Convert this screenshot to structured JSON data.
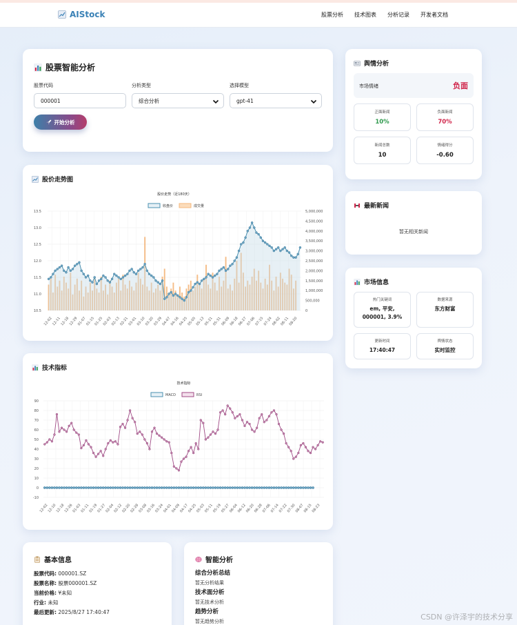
{
  "nav": {
    "brand": "AIStock",
    "links": [
      "股票分析",
      "技术图表",
      "分析记录",
      "开发者文档"
    ]
  },
  "analysis_form": {
    "title": "股票智能分析",
    "code_label": "股票代码",
    "code_value": "000001",
    "type_label": "分析类型",
    "type_value": "综合分析",
    "model_label": "选择模型",
    "model_value": "gpt-41",
    "start_button": "开始分析"
  },
  "sentiment": {
    "title": "舆情分析",
    "market_label": "市场情绪",
    "market_value": "负面",
    "positive_label": "正面新闻",
    "positive_value": "10%",
    "negative_label": "负面新闻",
    "negative_value": "70%",
    "total_label": "新闻总数",
    "total_value": "10",
    "score_label": "情绪得分",
    "score_value": "-0.60",
    "colors": {
      "positive": "#2f9a4d",
      "negative": "#d0254a"
    }
  },
  "news": {
    "title": "最新新闻",
    "empty_text": "暂无相关新闻"
  },
  "market_info": {
    "title": "市场信息",
    "hot_label": "热门关键词",
    "hot_value": "em, 平安, 000001, 3.9%",
    "source_label": "数据来源",
    "source_value": "东方财富",
    "update_label": "更新时间",
    "update_value": "17:40:47",
    "status_label": "舆情状态",
    "status_value": "实时监控"
  },
  "price_card": {
    "title": "股价走势图"
  },
  "tech_card": {
    "title": "技术指标"
  },
  "basic_info": {
    "title": "基本信息",
    "code_k": "股票代码:",
    "code_v": "000001.SZ",
    "name_k": "股票名称:",
    "name_v": "股票000001.SZ",
    "price_k": "当前价格:",
    "price_v": "¥未知",
    "industry_k": "行业:",
    "industry_v": "未知",
    "updated_k": "最后更新:",
    "updated_v": "2025/8/27 17:40:47"
  },
  "smart_analysis": {
    "title": "智能分析",
    "summary_h": "综合分析总结",
    "summary_t": "暂无分析结果",
    "tech_h": "技术面分析",
    "tech_t": "暂无技术分析",
    "trend_h": "趋势分析",
    "trend_t": "暂无趋势分析"
  },
  "watermark": "CSDN @许泽宇的技术分享",
  "chart_data": [
    {
      "type": "line+bar",
      "title": "股价走势（近180天）",
      "series": [
        {
          "name": "收盘价",
          "axis": "left",
          "color": "#4a90b0",
          "values": [
            11.45,
            11.5,
            11.6,
            11.7,
            11.75,
            11.8,
            11.85,
            11.7,
            11.65,
            11.8,
            11.7,
            11.75,
            11.85,
            11.9,
            11.95,
            11.7,
            11.6,
            11.5,
            11.55,
            11.4,
            11.35,
            11.5,
            11.3,
            11.4,
            11.45,
            11.55,
            11.5,
            11.4,
            11.35,
            11.45,
            11.6,
            11.55,
            11.5,
            11.45,
            11.5,
            11.55,
            11.6,
            11.7,
            11.75,
            11.65,
            11.6,
            11.7,
            11.75,
            11.8,
            11.9,
            11.7,
            11.6,
            11.55,
            11.5,
            11.4,
            11.35,
            11.3,
            11.4,
            10.85,
            10.9,
            11.0,
            11.05,
            10.95,
            11.0,
            10.95,
            10.9,
            10.85,
            10.8,
            10.9,
            11.05,
            11.1,
            11.2,
            11.3,
            11.35,
            11.3,
            11.4,
            11.45,
            11.5,
            11.6,
            11.55,
            11.5,
            11.55,
            11.6,
            11.7,
            11.75,
            11.8,
            11.7,
            11.75,
            11.85,
            11.9,
            12.0,
            12.1,
            12.3,
            12.5,
            12.55,
            12.7,
            12.9,
            13.0,
            13.15,
            13.0,
            12.85,
            12.8,
            12.7,
            12.6,
            12.55,
            12.5,
            12.45,
            12.4,
            12.3,
            12.35,
            12.4,
            12.3,
            12.35,
            12.4,
            12.3,
            12.25,
            12.15,
            12.1,
            12.1,
            12.2,
            12.4
          ]
        },
        {
          "name": "成交量",
          "axis": "right",
          "color": "#f4b97d",
          "values": [
            1300000,
            1600000,
            900000,
            1800000,
            1200000,
            1500000,
            1000000,
            1700000,
            1400000,
            1100000,
            1900000,
            800000,
            1300000,
            1600000,
            1000000,
            1500000,
            700000,
            1200000,
            900000,
            1400000,
            1000000,
            1600000,
            1100000,
            900000,
            1700000,
            1000000,
            1300000,
            800000,
            1500000,
            1200000,
            900000,
            1400000,
            1600000,
            1000000,
            1800000,
            1300000,
            1100000,
            1500000,
            1200000,
            1000000,
            1400000,
            1900000,
            1600000,
            1300000,
            3700000,
            1200000,
            1000000,
            1400000,
            900000,
            1100000,
            1300000,
            1000000,
            1700000,
            2100000,
            1200000,
            900000,
            1100000,
            1400000,
            1000000,
            800000,
            1200000,
            900000,
            700000,
            1100000,
            1300000,
            1500000,
            1000000,
            1200000,
            1800000,
            1400000,
            1100000,
            1600000,
            2300000,
            1300000,
            1100000,
            1900000,
            1400000,
            1000000,
            1700000,
            1200000,
            1500000,
            2700000,
            1100000,
            1300000,
            1000000,
            1600000,
            2500000,
            1400000,
            2900000,
            1900000,
            1200000,
            1500000,
            1300000,
            1700000,
            2100000,
            1500000,
            2000000,
            1400000,
            1100000,
            1600000,
            1300000,
            2300000,
            1500000,
            1000000,
            1700000,
            1200000,
            1900000,
            1600000,
            1400000,
            1300000,
            2100000,
            1800000,
            1100000,
            1500000
          ]
        }
      ],
      "x_ticks": [
        "12-02",
        "12-11",
        "12-18",
        "12-29",
        "01-07",
        "01-15",
        "01-25",
        "02-03",
        "02-13",
        "02-21",
        "03-01",
        "03-10",
        "03-20",
        "03-29",
        "04-07",
        "04-16",
        "04-25",
        "05-05",
        "05-13",
        "05-21",
        "05-31",
        "06-09",
        "06-18",
        "06-27",
        "07-06",
        "07-15",
        "07-24",
        "08-02",
        "08-11",
        "08-20"
      ],
      "y_left": {
        "min": 10.5,
        "max": 13.5,
        "ticks": [
          "10.5",
          "11.0",
          "11.5",
          "12.0",
          "12.5",
          "13.0",
          "13.5"
        ]
      },
      "y_right": {
        "min": 0,
        "max": 5000000,
        "ticks": [
          "0",
          "500,000",
          "1,000,000",
          "1,500,000",
          "2,000,000",
          "2,500,000",
          "3,000,000",
          "3,500,000",
          "4,000,000",
          "4,500,000",
          "5,000,000"
        ]
      },
      "grid": true,
      "legend": "top-center"
    },
    {
      "type": "line",
      "title": "技术指标",
      "series": [
        {
          "name": "MACD",
          "color": "#4a90b0",
          "values": [
            0,
            0,
            0,
            0,
            0,
            0,
            0,
            0,
            0,
            0,
            0,
            0,
            0,
            0,
            0,
            0,
            0,
            0,
            0,
            0,
            0,
            0,
            0,
            0,
            0,
            0,
            0,
            0,
            0,
            0,
            0,
            0,
            0,
            0,
            0,
            0,
            0,
            0,
            0,
            0,
            0,
            0,
            0,
            0,
            0,
            0,
            0,
            0,
            0,
            0,
            0,
            0,
            0,
            0,
            0,
            0,
            0,
            0,
            0,
            0,
            0,
            0,
            0,
            0,
            0,
            0,
            0,
            0,
            0,
            0,
            0,
            0,
            0,
            0,
            0,
            0,
            0,
            0,
            0,
            0,
            0,
            0,
            0,
            0,
            0,
            0,
            0,
            0,
            0,
            0,
            0,
            0,
            0,
            0,
            0,
            0,
            0,
            0,
            0,
            0,
            0,
            0,
            0,
            0,
            0,
            0,
            0,
            0,
            0,
            0,
            0
          ]
        },
        {
          "name": "RSI",
          "color": "#a04a85",
          "values": [
            45,
            47,
            50,
            48,
            55,
            76,
            58,
            62,
            60,
            58,
            64,
            67,
            60,
            57,
            55,
            41,
            44,
            49,
            45,
            42,
            36,
            32,
            35,
            38,
            33,
            40,
            46,
            49,
            47,
            48,
            45,
            63,
            66,
            62,
            70,
            80,
            72,
            68,
            56,
            58,
            55,
            50,
            46,
            40,
            58,
            62,
            56,
            54,
            52,
            50,
            48,
            47,
            36,
            22,
            20,
            18,
            27,
            30,
            32,
            38,
            42,
            36,
            46,
            40,
            70,
            67,
            50,
            52,
            55,
            58,
            56,
            60,
            78,
            80,
            76,
            85,
            82,
            78,
            72,
            74,
            76,
            70,
            64,
            68,
            66,
            60,
            58,
            62,
            72,
            76,
            68,
            70,
            74,
            78,
            80,
            76,
            66,
            60,
            56,
            46,
            42,
            38,
            30,
            32,
            36,
            44,
            46,
            42,
            38,
            36,
            42,
            40,
            44,
            48,
            47
          ]
        }
      ],
      "x_ticks": [
        "12-02",
        "12-10",
        "12-18",
        "12-26",
        "01-03",
        "01-11",
        "01-19",
        "01-27",
        "02-04",
        "02-12",
        "02-20",
        "02-28",
        "03-08",
        "03-16",
        "03-24",
        "04-01",
        "04-09",
        "04-17",
        "04-25",
        "05-03",
        "05-11",
        "05-19",
        "05-27",
        "06-04",
        "06-12",
        "06-20",
        "06-28",
        "07-06",
        "07-14",
        "07-22",
        "07-30",
        "08-07",
        "08-15",
        "08-23"
      ],
      "y": {
        "min": -10,
        "max": 90,
        "ticks": [
          "-10",
          "0",
          "10",
          "20",
          "30",
          "40",
          "50",
          "60",
          "70",
          "80",
          "90"
        ]
      },
      "grid": true,
      "legend": "top-center"
    }
  ]
}
